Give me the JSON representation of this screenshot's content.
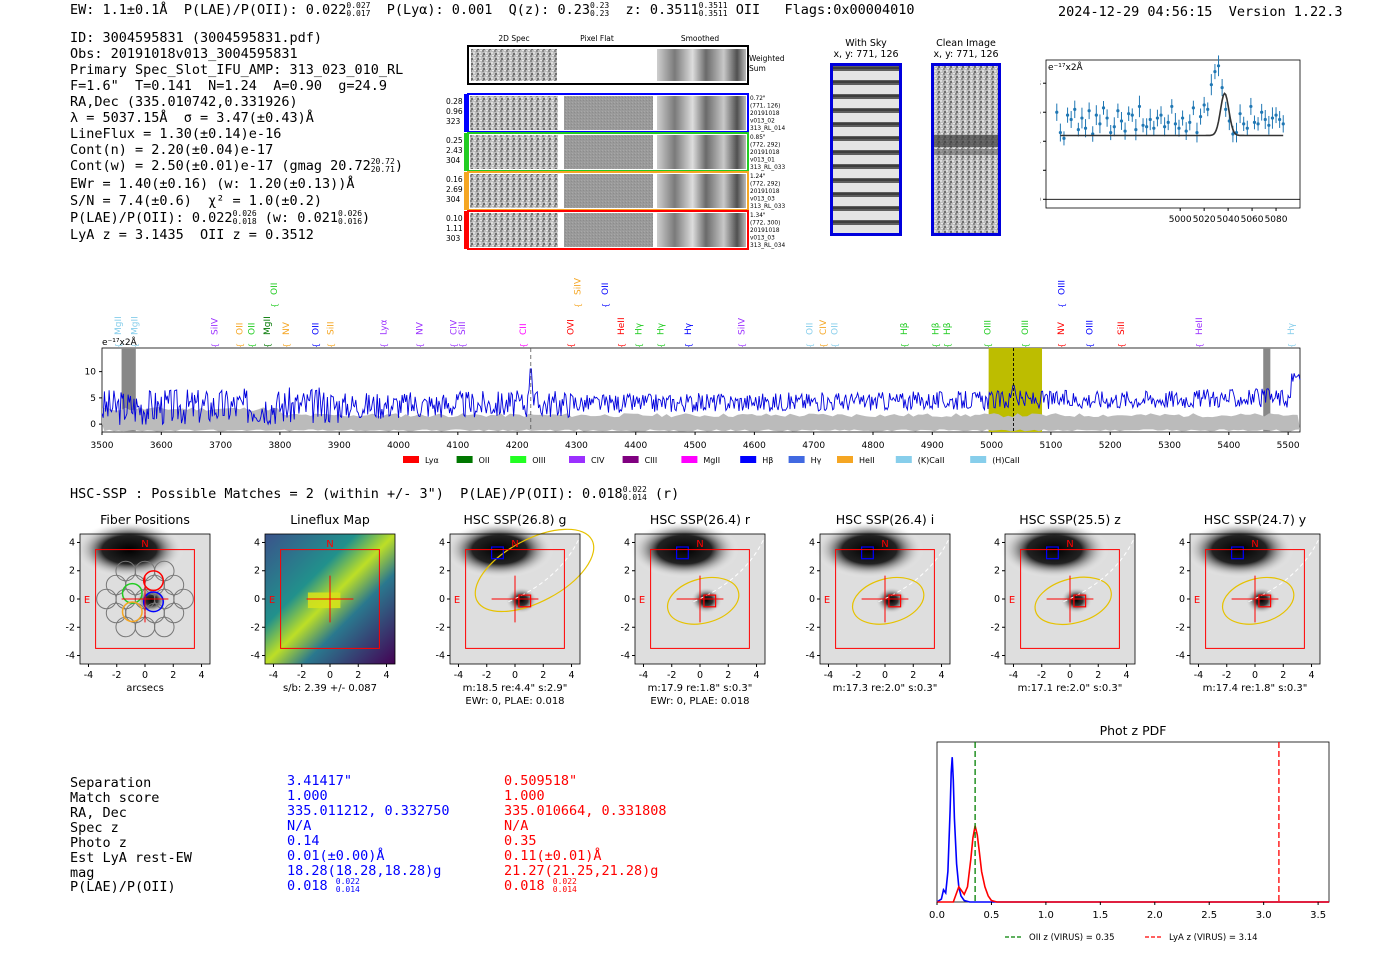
{
  "header": {
    "ew": "EW: 1.1±0.1Å",
    "plae_label": "P(LAE)/P(OII): 0.022",
    "plae_hi": "0.027",
    "plae_lo": "0.017",
    "plya": "P(Lyα): 0.001",
    "qz_label": "Q(z): 0.23",
    "qz_hi": "0.23",
    "qz_lo": "0.23",
    "z_label": "z: 0.3511",
    "z_hi": "0.3511",
    "z_lo": "0.3511",
    "z_line": "OII",
    "flags": "Flags:0x00004010",
    "timestamp": "2024-12-29 04:56:15",
    "version": "Version 1.22.3"
  },
  "info": {
    "id": "ID: 3004595831 (3004595831.pdf)",
    "obs": "Obs: 20191018v013_3004595831",
    "primary": "Primary Spec_Slot_IFU_AMP: 313_023_010_RL",
    "params": "F=1.6\"  T=0.141  N=1.24  A=0.90  g=24.9",
    "radec": "RA,Dec (335.010742,0.331926)",
    "lambda": "λ = 5037.15Å  σ = 3.47(±0.43)Å",
    "lineflux": "LineFlux = 1.30(±0.14)e-16",
    "contn": "Cont(n) = 2.20(±0.04)e-17",
    "contw": "Cont(w) = 2.50(±0.01)e-17 (gmag 20.72",
    "contw_hi": "20.72",
    "contw_lo": "20.71",
    "contw_end": ")",
    "ewr": "EWr = 1.40(±0.16) (w: 1.20(±0.13))Å",
    "sn": "S/N = 7.4(±0.6)  χ² = 1.0(±0.2)",
    "plae": "P(LAE)/P(OII): 0.022",
    "plae_hi": "0.026",
    "plae_lo": "0.018",
    "plae_w": "(w: 0.021",
    "plae_w_hi": "0.026",
    "plae_w_lo": "0.016",
    "plae_end": ")",
    "lyaz": "LyA z = 3.1435  OII z = 0.3512"
  },
  "cutouts": {
    "col_2d": "2D Spec",
    "col_flat": "Pixel Flat",
    "col_smooth": "Smoothed",
    "weighted": "Weighted",
    "sum": "Sum",
    "rows": [
      {
        "left": [
          "0.28",
          "0.96",
          "323"
        ],
        "right": [
          "0.72\"",
          "(771, 126)",
          "20191018",
          "v013_02",
          "313_RL_014"
        ],
        "color": "#0000ff"
      },
      {
        "left": [
          "0.25",
          "2.43",
          "304"
        ],
        "right": [
          "0.85\"",
          "(772, 292)",
          "20191018",
          "v013_01",
          "313_RL_033"
        ],
        "color": "#22cc22"
      },
      {
        "left": [
          "0.16",
          "2.69",
          "304"
        ],
        "right": [
          "1.24\"",
          "(772, 292)",
          "20191018",
          "v013_03",
          "313_RL_033"
        ],
        "color": "#f5a623"
      },
      {
        "left": [
          "0.10",
          "1.11",
          "303"
        ],
        "right": [
          "1.34\"",
          "(772, 300)",
          "20191018",
          "v013_03",
          "313_RL_034"
        ],
        "color": "#ff0000"
      }
    ]
  },
  "sky_panel": {
    "title1": "With Sky",
    "title2": "x, y: 771, 126"
  },
  "clean_panel": {
    "title1": "Clean Image",
    "title2": "x, y: 771, 126"
  },
  "line_fit": {
    "unit": "e⁻¹⁷x2Å",
    "xticks": [
      "5000",
      "5020",
      "5040",
      "5060",
      "5080"
    ],
    "yticks": [
      "0",
      "2",
      "4",
      "6",
      "8"
    ],
    "xlim": [
      4888,
      5100
    ],
    "ylim": [
      -0.6,
      9.6
    ],
    "x": [
      4897,
      4900,
      4903,
      4906,
      4909,
      4912,
      4915,
      4918,
      4921,
      4924,
      4927,
      4930,
      4933,
      4936,
      4939,
      4942,
      4945,
      4948,
      4951,
      4954,
      4957,
      4960,
      4963,
      4966,
      4969,
      4972,
      4975,
      4978,
      4981,
      4984,
      4987,
      4990,
      4993,
      4996,
      4999,
      5002,
      5005,
      5008,
      5011,
      5014,
      5017,
      5020,
      5023,
      5026,
      5029,
      5032,
      5035,
      5038,
      5041,
      5044,
      5047,
      5050,
      5053,
      5056,
      5059,
      5062,
      5065,
      5068,
      5071,
      5074,
      5077,
      5080,
      5083,
      5086
    ],
    "y": [
      6.0,
      4.6,
      4.2,
      5.8,
      5.5,
      6.2,
      4.8,
      5.6,
      4.9,
      6.1,
      4.5,
      5.8,
      5.2,
      6.3,
      5.6,
      4.6,
      5.0,
      6.1,
      5.4,
      4.7,
      5.9,
      5.8,
      4.8,
      6.4,
      5.1,
      5.0,
      5.5,
      4.9,
      5.6,
      5.8,
      5.0,
      5.3,
      6.4,
      5.2,
      4.9,
      5.6,
      4.7,
      5.3,
      6.3,
      4.6,
      5.7,
      6.5,
      6.2,
      7.9,
      8.8,
      9.2,
      7.7,
      6.2,
      5.4,
      4.5,
      4.6,
      5.9,
      5.2,
      4.9,
      6.4,
      5.3,
      5.2,
      6.0,
      5.5,
      5.1,
      5.6,
      5.8,
      5.5,
      5.2
    ],
    "fit_base": 4.4,
    "fit_amp": 2.9,
    "fit_center": 5037.15,
    "fit_sigma": 3.47
  },
  "spectrum": {
    "unit": "e⁻¹⁷x2Å",
    "xlim": [
      3500,
      5520
    ],
    "ylim": [
      -1.5,
      14.5
    ],
    "xticks": [
      "3500",
      "3600",
      "3700",
      "3800",
      "3900",
      "4000",
      "4100",
      "4200",
      "4300",
      "4400",
      "4500",
      "4600",
      "4700",
      "4800",
      "4900",
      "5000",
      "5100",
      "5200",
      "5300",
      "5400",
      "5500"
    ],
    "yticks": [
      "0",
      "5",
      "10"
    ],
    "line_labels": [
      {
        "x": 3527,
        "t": "MgII",
        "c": "#87ceeb",
        "lvl": 0
      },
      {
        "x": 3555,
        "t": "MgII",
        "c": "#87ceeb",
        "lvl": 0
      },
      {
        "x": 3690,
        "t": "SiIV",
        "c": "#9b30ff",
        "lvl": 0
      },
      {
        "x": 3732,
        "t": "OII",
        "c": "#f5a623",
        "lvl": 0
      },
      {
        "x": 3752,
        "t": "OII",
        "c": "#22cc22",
        "lvl": 0
      },
      {
        "x": 3778,
        "t": "MgII",
        "c": "#007700",
        "lvl": 0
      },
      {
        "x": 3790,
        "t": "OII",
        "c": "#22cc22",
        "lvl": 1
      },
      {
        "x": 3810,
        "t": "NV",
        "c": "#f5a623",
        "lvl": 0
      },
      {
        "x": 3860,
        "t": "OII",
        "c": "#0000ff",
        "lvl": 0
      },
      {
        "x": 3885,
        "t": "SiII",
        "c": "#f5a623",
        "lvl": 0
      },
      {
        "x": 3975,
        "t": "Lyα",
        "c": "#9b30ff",
        "lvl": 0
      },
      {
        "x": 4035,
        "t": "NV",
        "c": "#9b30ff",
        "lvl": 0
      },
      {
        "x": 4093,
        "t": "CIV",
        "c": "#9b30ff",
        "lvl": 0
      },
      {
        "x": 4107,
        "t": "SiII",
        "c": "#9b30ff",
        "lvl": 0
      },
      {
        "x": 4210,
        "t": "CII",
        "c": "#ff00ff",
        "lvl": 0
      },
      {
        "x": 4290,
        "t": "OVI",
        "c": "#ff0000",
        "lvl": 0
      },
      {
        "x": 4302,
        "t": "SiIV",
        "c": "#f5a623",
        "lvl": 1
      },
      {
        "x": 4348,
        "t": "OII",
        "c": "#0000ff",
        "lvl": 1
      },
      {
        "x": 4375,
        "t": "HeII",
        "c": "#ff0000",
        "lvl": 0
      },
      {
        "x": 4405,
        "t": "Hγ",
        "c": "#22cc22",
        "lvl": 0
      },
      {
        "x": 4442,
        "t": "Hγ",
        "c": "#22cc22",
        "lvl": 0
      },
      {
        "x": 4488,
        "t": "Hγ",
        "c": "#0000ff",
        "lvl": 0
      },
      {
        "x": 4578,
        "t": "SiIV",
        "c": "#9b30ff",
        "lvl": 0
      },
      {
        "x": 4693,
        "t": "OII",
        "c": "#87ceeb",
        "lvl": 0
      },
      {
        "x": 4716,
        "t": "CIV",
        "c": "#f5a623",
        "lvl": 0
      },
      {
        "x": 4735,
        "t": "OII",
        "c": "#87ceeb",
        "lvl": 0
      },
      {
        "x": 4852,
        "t": "Hβ",
        "c": "#22cc22",
        "lvl": 0
      },
      {
        "x": 4905,
        "t": "Hβ",
        "c": "#22cc22",
        "lvl": 0
      },
      {
        "x": 4925,
        "t": "Hβ",
        "c": "#22cc22",
        "lvl": 0
      },
      {
        "x": 4993,
        "t": "OIII",
        "c": "#22cc22",
        "lvl": 0
      },
      {
        "x": 5056,
        "t": "OIII",
        "c": "#22cc22",
        "lvl": 0
      },
      {
        "x": 5117,
        "t": "NV",
        "c": "#ff0000",
        "lvl": 0
      },
      {
        "x": 5118,
        "t": "OIII",
        "c": "#0000ff",
        "lvl": 1
      },
      {
        "x": 5165,
        "t": "OIII",
        "c": "#0000ff",
        "lvl": 0
      },
      {
        "x": 5218,
        "t": "SiII",
        "c": "#ff0000",
        "lvl": 0
      },
      {
        "x": 5350,
        "t": "HeII",
        "c": "#9b30ff",
        "lvl": 0
      },
      {
        "x": 5505,
        "t": "Hγ",
        "c": "#87ceeb",
        "lvl": 0
      }
    ],
    "legend": [
      {
        "t": "Lyα",
        "c": "#ff0000"
      },
      {
        "t": "OII",
        "c": "#007700"
      },
      {
        "t": "OIII",
        "c": "#22ff22"
      },
      {
        "t": "CIV",
        "c": "#9b30ff"
      },
      {
        "t": "CIII",
        "c": "#800080"
      },
      {
        "t": "MgII",
        "c": "#ff00ff"
      },
      {
        "t": "Hβ",
        "c": "#0000ff"
      },
      {
        "t": "Hγ",
        "c": "#4169e1"
      },
      {
        "t": "HeII",
        "c": "#f5a623"
      },
      {
        "t": "(K)CaII",
        "c": "#87ceeb"
      },
      {
        "t": "(H)CaII",
        "c": "#87ceeb"
      }
    ]
  },
  "hsc": {
    "title": "HSC-SSP : Possible Matches = 2 (within +/- 3\")  P(LAE)/P(OII): 0.018",
    "plae_hi": "0.022",
    "plae_lo": "0.014",
    "plae_end": "(r)",
    "panels": [
      {
        "title": "Fiber Positions",
        "cap1": "arcsecs",
        "cap2": ""
      },
      {
        "title": "Lineflux Map",
        "cap1": "s/b: 2.39 +/- 0.087",
        "cap2": ""
      },
      {
        "title": "HSC SSP(26.8) g",
        "cap1": "m:18.5  re:4.4\"  s:2.9\"",
        "cap2": "EWr: 0, PLAE: 0.018"
      },
      {
        "title": "HSC SSP(26.4) r",
        "cap1": "m:17.9  re:1.8\"  s:0.3\"",
        "cap2": "EWr: 0, PLAE: 0.018"
      },
      {
        "title": "HSC SSP(26.4) i",
        "cap1": "m:17.3  re:2.0\"  s:0.3\"",
        "cap2": ""
      },
      {
        "title": "HSC SSP(25.5) z",
        "cap1": "m:17.1  re:2.0\"  s:0.3\"",
        "cap2": ""
      },
      {
        "title": "HSC SSP(24.7) y",
        "cap1": "m:17.4  re:1.8\"  s:0.3\"",
        "cap2": ""
      }
    ],
    "axis_ticks": [
      "-4",
      "-2",
      "0",
      "2",
      "4"
    ],
    "label_n": "N",
    "label_e": "E"
  },
  "match_table": {
    "labels": [
      "Separation",
      "Match score",
      "RA, Dec",
      "Spec z",
      "Photo z",
      "Est LyA rest-EW",
      "mag",
      "P(LAE)/P(OII)"
    ],
    "blue": [
      "3.41417\"",
      "1.000",
      "335.011212, 0.332750",
      "N/A",
      "0.14",
      "0.01(±0.00)Å",
      "18.28(18.28,18.28)g",
      "0.018"
    ],
    "blue_plae_hi": "0.022",
    "blue_plae_lo": "0.014",
    "red": [
      "0.509518\"",
      "1.000",
      "335.010664, 0.331808",
      "N/A",
      "0.35",
      "0.11(±0.01)Å",
      "21.27(21.25,21.28)g",
      "0.018"
    ],
    "red_plae_hi": "0.022",
    "red_plae_lo": "0.014"
  },
  "photz": {
    "type": "line",
    "title": "Phot z PDF",
    "xlim": [
      0.0,
      3.6
    ],
    "xticks": [
      "0.0",
      "0.5",
      "1.0",
      "1.5",
      "2.0",
      "2.5",
      "3.0",
      "3.5"
    ],
    "oii_z": 0.35,
    "lya_z": 3.14,
    "legend_oii": "OII z (VIRUS) = 0.35",
    "legend_lya": "LyA z (VIRUS) = 3.14",
    "series": [
      {
        "name": "blue match",
        "color": "#0000ff",
        "x": [
          0.0,
          0.04,
          0.06,
          0.08,
          0.1,
          0.12,
          0.13,
          0.14,
          0.15,
          0.16,
          0.18,
          0.2,
          0.22,
          0.25,
          0.3,
          0.4,
          3.6
        ],
        "y": [
          0.0,
          0.02,
          0.08,
          0.06,
          0.2,
          0.6,
          0.85,
          0.95,
          0.8,
          0.55,
          0.25,
          0.1,
          0.04,
          0.01,
          0.0,
          0.0,
          0.0
        ]
      },
      {
        "name": "red match",
        "color": "#ff0000",
        "x": [
          0.0,
          0.15,
          0.2,
          0.25,
          0.28,
          0.31,
          0.33,
          0.35,
          0.37,
          0.39,
          0.41,
          0.44,
          0.47,
          0.5,
          0.55,
          3.6
        ],
        "y": [
          0.0,
          0.0,
          0.1,
          0.05,
          0.1,
          0.28,
          0.42,
          0.5,
          0.44,
          0.32,
          0.2,
          0.1,
          0.04,
          0.01,
          0.0,
          0.0
        ]
      }
    ]
  }
}
